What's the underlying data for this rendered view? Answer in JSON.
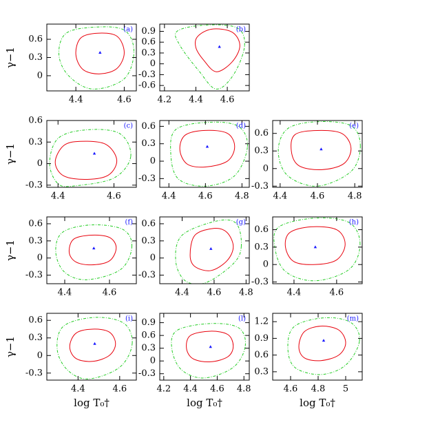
{
  "chart_data": [
    {
      "type": "contour",
      "tag": "(a)",
      "y_label": "γ−1",
      "xlim": [
        4.28,
        4.65
      ],
      "ylim": [
        -0.25,
        0.85
      ],
      "xticks": [
        4.4,
        4.6
      ],
      "yticks": [
        0,
        0.3,
        0.6
      ],
      "series": [
        {
          "color": "#e8000b",
          "style": "solid",
          "x": [
            4.6,
            4.57,
            4.49,
            4.42,
            4.4,
            4.43,
            4.5,
            4.57
          ],
          "values": [
            0.38,
            0.65,
            0.7,
            0.62,
            0.35,
            0.1,
            0.03,
            0.12
          ]
        },
        {
          "color": "#22cc22",
          "style": "dashed",
          "x": [
            4.64,
            4.6,
            4.48,
            4.36,
            4.33,
            4.37,
            4.47,
            4.6
          ],
          "values": [
            0.4,
            0.75,
            0.8,
            0.7,
            0.35,
            0.0,
            -0.22,
            -0.05
          ]
        }
      ],
      "marker": {
        "color": "#1a1aff",
        "x": [
          4.5
        ],
        "values": [
          0.38
        ]
      }
    },
    {
      "type": "contour",
      "tag": "(b)",
      "xlim": [
        4.17,
        4.74
      ],
      "ylim": [
        -0.75,
        1.1
      ],
      "xticks": [
        4.2,
        4.4,
        4.6
      ],
      "yticks": [
        -0.6,
        -0.3,
        0,
        0.3,
        0.6,
        0.9
      ],
      "series": [
        {
          "color": "#e8000b",
          "style": "solid",
          "x": [
            4.68,
            4.63,
            4.5,
            4.41,
            4.4,
            4.45,
            4.53,
            4.63
          ],
          "values": [
            0.5,
            0.88,
            0.96,
            0.75,
            0.45,
            0.1,
            -0.22,
            0.05
          ]
        },
        {
          "color": "#22cc22",
          "style": "dashed",
          "x": [
            4.71,
            4.66,
            4.45,
            4.28,
            4.3,
            4.42,
            4.53,
            4.64
          ],
          "values": [
            0.5,
            1.0,
            1.07,
            0.9,
            0.5,
            -0.2,
            -0.7,
            -0.3
          ]
        }
      ],
      "marker": {
        "color": "#1a1aff",
        "x": [
          4.55
        ],
        "values": [
          0.47
        ]
      }
    },
    {
      "type": "contour",
      "tag": "(c)",
      "y_label": "γ−1",
      "xlim": [
        4.36,
        4.68
      ],
      "ylim": [
        -0.33,
        0.6
      ],
      "xticks": [
        4.4,
        4.6
      ],
      "yticks": [
        -0.3,
        0,
        0.3,
        0.6
      ],
      "series": [
        {
          "color": "#e8000b",
          "style": "solid",
          "x": [
            4.61,
            4.57,
            4.48,
            4.42,
            4.39,
            4.42,
            4.5,
            4.58
          ],
          "values": [
            0.05,
            0.27,
            0.31,
            0.25,
            0.02,
            -0.17,
            -0.22,
            -0.16
          ]
        },
        {
          "color": "#22cc22",
          "style": "dashed",
          "x": [
            4.66,
            4.62,
            4.5,
            4.4,
            4.37,
            4.4,
            4.46,
            4.6
          ],
          "values": [
            0.1,
            0.42,
            0.47,
            0.35,
            0.0,
            -0.28,
            -0.31,
            -0.2
          ]
        }
      ],
      "marker": {
        "color": "#1a1aff",
        "x": [
          4.53
        ],
        "values": [
          0.14
        ]
      }
    },
    {
      "type": "contour",
      "tag": "(d)",
      "xlim": [
        4.35,
        4.84
      ],
      "ylim": [
        -0.45,
        0.7
      ],
      "xticks": [
        4.4,
        4.6,
        4.8
      ],
      "yticks": [
        -0.3,
        0,
        0.3,
        0.6
      ],
      "series": [
        {
          "color": "#e8000b",
          "style": "solid",
          "x": [
            4.76,
            4.72,
            4.6,
            4.49,
            4.46,
            4.5,
            4.6,
            4.72
          ],
          "values": [
            0.25,
            0.48,
            0.53,
            0.45,
            0.2,
            -0.05,
            -0.1,
            0.0
          ]
        },
        {
          "color": "#22cc22",
          "style": "dashed",
          "x": [
            4.83,
            4.78,
            4.62,
            4.44,
            4.41,
            4.45,
            4.6,
            4.76
          ],
          "values": [
            0.25,
            0.6,
            0.67,
            0.55,
            0.15,
            -0.3,
            -0.43,
            -0.25
          ]
        }
      ],
      "marker": {
        "color": "#1a1aff",
        "x": [
          4.61
        ],
        "values": [
          0.25
        ]
      }
    },
    {
      "type": "contour",
      "tag": "(e)",
      "xlim": [
        4.36,
        4.84
      ],
      "ylim": [
        -0.32,
        0.82
      ],
      "xticks": [
        4.4,
        4.6,
        4.8
      ],
      "yticks": [
        -0.3,
        0,
        0.3,
        0.6
      ],
      "series": [
        {
          "color": "#e8000b",
          "style": "solid",
          "x": [
            4.78,
            4.73,
            4.6,
            4.48,
            4.46,
            4.5,
            4.62,
            4.74
          ],
          "values": [
            0.35,
            0.6,
            0.65,
            0.58,
            0.3,
            0.05,
            -0.02,
            0.08
          ]
        },
        {
          "color": "#22cc22",
          "style": "dashed",
          "x": [
            4.83,
            4.78,
            4.6,
            4.44,
            4.39,
            4.44,
            4.6,
            4.78
          ],
          "values": [
            0.38,
            0.73,
            0.8,
            0.68,
            0.3,
            -0.12,
            -0.3,
            -0.05
          ]
        }
      ],
      "marker": {
        "color": "#1a1aff",
        "x": [
          4.62
        ],
        "values": [
          0.33
        ]
      }
    },
    {
      "type": "contour",
      "tag": "(f)",
      "y_label": "γ−1",
      "xlim": [
        4.32,
        4.72
      ],
      "ylim": [
        -0.45,
        0.72
      ],
      "xticks": [
        4.4,
        4.6
      ],
      "yticks": [
        -0.3,
        0,
        0.3,
        0.6
      ],
      "series": [
        {
          "color": "#e8000b",
          "style": "solid",
          "x": [
            4.63,
            4.6,
            4.52,
            4.44,
            4.42,
            4.45,
            4.52,
            4.6
          ],
          "values": [
            0.18,
            0.36,
            0.4,
            0.33,
            0.1,
            -0.07,
            -0.12,
            -0.05
          ]
        },
        {
          "color": "#22cc22",
          "style": "dashed",
          "x": [
            4.7,
            4.66,
            4.52,
            4.39,
            4.36,
            4.4,
            4.5,
            4.65
          ],
          "values": [
            0.2,
            0.5,
            0.58,
            0.45,
            0.1,
            -0.25,
            -0.38,
            -0.2
          ]
        }
      ],
      "marker": {
        "color": "#1a1aff",
        "x": [
          4.53
        ],
        "values": [
          0.17
        ]
      }
    },
    {
      "type": "contour",
      "tag": "(g)",
      "xlim": [
        4.26,
        4.82
      ],
      "ylim": [
        -0.45,
        0.72
      ],
      "xticks": [
        4.4,
        4.6,
        4.8
      ],
      "yticks": [
        -0.3,
        0,
        0.3,
        0.6
      ],
      "series": [
        {
          "color": "#e8000b",
          "style": "solid",
          "x": [
            4.72,
            4.68,
            4.6,
            4.48,
            4.45,
            4.48,
            4.58,
            4.68
          ],
          "values": [
            0.2,
            0.45,
            0.52,
            0.4,
            0.05,
            -0.15,
            -0.22,
            -0.05
          ]
        },
        {
          "color": "#22cc22",
          "style": "dashed",
          "x": [
            4.77,
            4.74,
            4.62,
            4.4,
            4.36,
            4.42,
            4.55,
            4.72
          ],
          "values": [
            0.2,
            0.6,
            0.65,
            0.4,
            -0.05,
            -0.4,
            -0.43,
            -0.1
          ]
        }
      ],
      "marker": {
        "color": "#1a1aff",
        "x": [
          4.58
        ],
        "values": [
          0.16
        ]
      }
    },
    {
      "type": "contour",
      "tag": "(h)",
      "xlim": [
        4.3,
        4.72
      ],
      "ylim": [
        -0.33,
        0.82
      ],
      "xticks": [
        4.4,
        4.6
      ],
      "yticks": [
        -0.3,
        0,
        0.3,
        0.6
      ],
      "series": [
        {
          "color": "#e8000b",
          "style": "solid",
          "x": [
            4.64,
            4.6,
            4.48,
            4.38,
            4.36,
            4.4,
            4.5,
            4.6
          ],
          "values": [
            0.35,
            0.6,
            0.65,
            0.55,
            0.3,
            0.05,
            0.0,
            0.08
          ]
        },
        {
          "color": "#22cc22",
          "style": "dashed",
          "x": [
            4.71,
            4.66,
            4.5,
            4.33,
            4.31,
            4.36,
            4.5,
            4.66
          ],
          "values": [
            0.35,
            0.72,
            0.8,
            0.65,
            0.3,
            -0.12,
            -0.28,
            -0.08
          ]
        }
      ],
      "marker": {
        "color": "#1a1aff",
        "x": [
          4.5
        ],
        "values": [
          0.3
        ]
      }
    },
    {
      "type": "contour",
      "tag": "(i)",
      "y_label": "γ−1",
      "x_label": "log T₀†",
      "xlim": [
        4.25,
        4.68
      ],
      "ylim": [
        -0.42,
        0.72
      ],
      "xticks": [
        4.4,
        4.6
      ],
      "yticks": [
        -0.3,
        0,
        0.3,
        0.6
      ],
      "series": [
        {
          "color": "#e8000b",
          "style": "solid",
          "x": [
            4.58,
            4.55,
            4.47,
            4.39,
            4.36,
            4.39,
            4.47,
            4.55
          ],
          "values": [
            0.2,
            0.4,
            0.45,
            0.38,
            0.15,
            -0.05,
            -0.1,
            0.0
          ]
        },
        {
          "color": "#22cc22",
          "style": "dashed",
          "x": [
            4.66,
            4.62,
            4.48,
            4.33,
            4.3,
            4.35,
            4.45,
            4.6
          ],
          "values": [
            0.2,
            0.55,
            0.65,
            0.5,
            0.1,
            -0.25,
            -0.4,
            -0.2
          ]
        }
      ],
      "marker": {
        "color": "#1a1aff",
        "x": [
          4.48
        ],
        "values": [
          0.2
        ]
      }
    },
    {
      "type": "contour",
      "tag": "(l)",
      "x_label": "log T₀†",
      "xlim": [
        4.17,
        4.84
      ],
      "ylim": [
        -0.45,
        1.12
      ],
      "xticks": [
        4.2,
        4.4,
        4.6,
        4.8
      ],
      "yticks": [
        -0.3,
        0,
        0.3,
        0.6,
        0.9
      ],
      "series": [
        {
          "color": "#e8000b",
          "style": "solid",
          "x": [
            4.72,
            4.68,
            4.55,
            4.4,
            4.37,
            4.42,
            4.55,
            4.68
          ],
          "values": [
            0.35,
            0.62,
            0.7,
            0.6,
            0.3,
            0.05,
            -0.02,
            0.1
          ]
        },
        {
          "color": "#22cc22",
          "style": "dashed",
          "x": [
            4.81,
            4.76,
            4.55,
            4.3,
            4.26,
            4.33,
            4.5,
            4.72
          ],
          "values": [
            0.35,
            0.78,
            0.88,
            0.72,
            0.3,
            -0.2,
            -0.4,
            -0.15
          ]
        }
      ],
      "marker": {
        "color": "#1a1aff",
        "x": [
          4.55
        ],
        "values": [
          0.33
        ]
      }
    },
    {
      "type": "contour",
      "tag": "(m)",
      "x_label": "log T₀†",
      "xlim": [
        4.47,
        5.12
      ],
      "ylim": [
        0.15,
        1.35
      ],
      "xticks": [
        4.6,
        4.8,
        5
      ],
      "yticks": [
        0.3,
        0.6,
        0.9,
        1.2
      ],
      "series": [
        {
          "color": "#e8000b",
          "style": "solid",
          "x": [
            5.0,
            4.95,
            4.82,
            4.7,
            4.66,
            4.7,
            4.82,
            4.95
          ],
          "values": [
            0.82,
            1.05,
            1.12,
            1.02,
            0.75,
            0.55,
            0.5,
            0.6
          ]
        },
        {
          "color": "#22cc22",
          "style": "dashed",
          "x": [
            5.1,
            5.04,
            4.85,
            4.63,
            4.58,
            4.63,
            4.82,
            5.0
          ],
          "values": [
            0.85,
            1.18,
            1.27,
            1.12,
            0.75,
            0.38,
            0.25,
            0.42
          ]
        }
      ],
      "marker": {
        "color": "#1a1aff",
        "x": [
          4.84
        ],
        "values": [
          0.86
        ]
      }
    }
  ]
}
